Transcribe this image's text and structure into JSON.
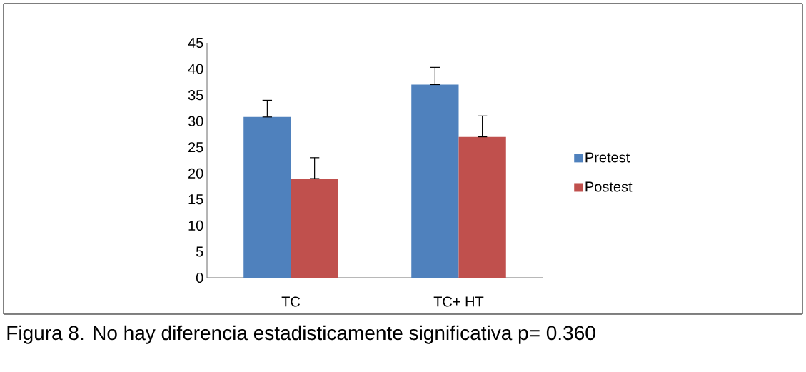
{
  "chart_data": {
    "type": "bar",
    "categories": [
      "TC",
      "TC+ HT"
    ],
    "series": [
      {
        "name": "Pretest",
        "color": "#4f81bd",
        "values": [
          30.8,
          37
        ],
        "errors": [
          [
            30.8,
            34
          ],
          [
            37,
            40.3
          ]
        ]
      },
      {
        "name": "Postest",
        "color": "#c0504d",
        "values": [
          19,
          27
        ],
        "errors": [
          [
            19,
            23
          ],
          [
            27,
            31
          ]
        ]
      }
    ],
    "ylim": [
      0,
      45
    ],
    "yticks": [
      0,
      5,
      10,
      15,
      20,
      25,
      30,
      35,
      40,
      45
    ],
    "legend": "right",
    "annotations": [
      "Figura 8. No hay diferencia estadisticamente significativa p= 0.360"
    ]
  }
}
